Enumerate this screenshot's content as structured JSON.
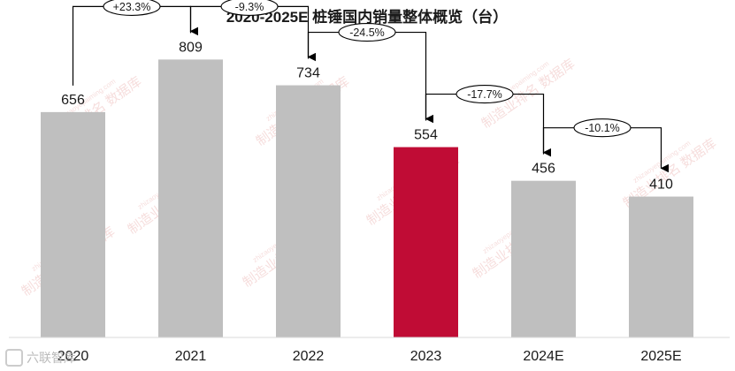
{
  "chart_data": {
    "type": "bar",
    "title": "2020-2025E 桩锤国内销量整体概览（台）",
    "categories": [
      "2020",
      "2021",
      "2022",
      "2023",
      "2024E",
      "2025E"
    ],
    "values": [
      656,
      809,
      734,
      554,
      456,
      410
    ],
    "highlight_index": 3,
    "growth_labels": [
      "+23.3%",
      "-9.3%",
      "-24.5%",
      "-17.7%",
      "-10.1%"
    ],
    "ylim": [
      0,
      900
    ],
    "grid": false,
    "legend": "none",
    "colors": {
      "bar": "#bfbfbf",
      "highlight": "#c00c35",
      "arrow": "#000000",
      "text": "#1a1a1a"
    }
  },
  "watermark": {
    "text": "制造业排名 数据库",
    "url": "zhizaoyepaiming.com"
  },
  "footer": {
    "logo_text": "六联智库"
  }
}
